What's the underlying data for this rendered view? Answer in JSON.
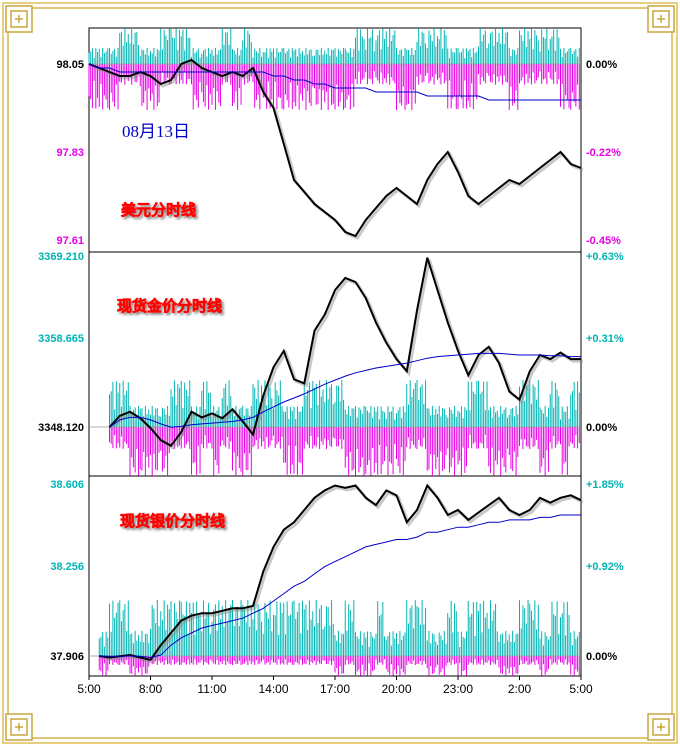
{
  "date_label": "08月13日",
  "colors": {
    "price_line": "#000000",
    "avg_line": "#0000c8",
    "up_bar": "#00b4b4",
    "down_bar": "#e600e6",
    "left_base": "#000000",
    "left_mid": "#e600e6",
    "left_gold": "#00b4b4",
    "right_neg": "#e600e6",
    "right_pos": "#00b4b4",
    "title_text": "#ffd200",
    "title_shadow": "#ff0000",
    "date_text": "#0000c8",
    "frame_gold": "#d8b44a"
  },
  "chart_data": [
    {
      "type": "line",
      "title": "美元分时线",
      "left_ticks": [
        "98.05",
        "97.83",
        "97.61"
      ],
      "right_ticks": [
        "0.00%",
        "-0.22%",
        "-0.45%"
      ],
      "base_value": 98.05,
      "ylim": [
        97.61,
        98.05
      ],
      "x_hours": [
        0,
        0.5,
        1,
        1.5,
        2,
        2.5,
        3,
        3.5,
        4,
        4.5,
        5,
        5.5,
        6,
        6.5,
        7,
        7.5,
        8,
        8.5,
        9,
        9.5,
        10,
        10.5,
        11,
        11.5,
        12,
        12.5,
        13,
        13.5,
        14,
        14.5,
        15,
        15.5,
        16,
        16.5,
        17,
        17.5,
        18,
        18.5,
        19,
        19.5,
        20,
        20.5,
        21,
        21.5,
        22,
        22.5,
        23,
        23.5,
        24
      ],
      "price": [
        98.05,
        98.04,
        98.03,
        98.02,
        98.02,
        98.03,
        98.02,
        98.0,
        98.01,
        98.05,
        98.06,
        98.04,
        98.03,
        98.02,
        98.03,
        98.02,
        98.04,
        97.98,
        97.94,
        97.85,
        97.76,
        97.73,
        97.7,
        97.68,
        97.66,
        97.63,
        97.62,
        97.66,
        97.69,
        97.72,
        97.74,
        97.72,
        97.7,
        97.76,
        97.8,
        97.83,
        97.78,
        97.72,
        97.7,
        97.72,
        97.74,
        97.76,
        97.75,
        97.77,
        97.79,
        97.81,
        97.83,
        97.8,
        97.79
      ],
      "avg": [
        98.05,
        98.04,
        98.04,
        98.03,
        98.03,
        98.03,
        98.03,
        98.03,
        98.03,
        98.03,
        98.03,
        98.03,
        98.03,
        98.03,
        98.03,
        98.03,
        98.03,
        98.03,
        98.02,
        98.02,
        98.01,
        98.01,
        98.0,
        98.0,
        97.99,
        97.99,
        97.99,
        97.99,
        97.98,
        97.98,
        97.98,
        97.98,
        97.98,
        97.97,
        97.97,
        97.97,
        97.97,
        97.97,
        97.97,
        97.96,
        97.96,
        97.96,
        97.96,
        97.96,
        97.96,
        97.96,
        97.96,
        97.96,
        97.96
      ]
    },
    {
      "type": "line",
      "title": "现货金价分时线",
      "left_ticks": [
        "3369.210",
        "3358.665",
        "3348.120"
      ],
      "right_ticks": [
        "+0.63%",
        "+0.31%",
        "0.00%"
      ],
      "base_value": 3348.12,
      "ylim": [
        3348.12,
        3369.21
      ],
      "x_hours": [
        0,
        0.5,
        1,
        1.5,
        2,
        2.5,
        3,
        3.5,
        4,
        4.5,
        5,
        5.5,
        6,
        6.5,
        7,
        7.5,
        8,
        8.5,
        9,
        9.5,
        10,
        10.5,
        11,
        11.5,
        12,
        12.5,
        13,
        13.5,
        14,
        14.5,
        15,
        15.5,
        16,
        16.5,
        17,
        17.5,
        18,
        18.5,
        19,
        19.5,
        20,
        20.5,
        21,
        21.5,
        22,
        22.5,
        23,
        23.5,
        24
      ],
      "price": [
        null,
        null,
        3348.1,
        3349.5,
        3350.0,
        3349.2,
        3348.0,
        3346.5,
        3345.8,
        3347.5,
        3350.0,
        3349.3,
        3349.8,
        3349.2,
        3350.3,
        3348.8,
        3347.2,
        3352.0,
        3355.5,
        3357.5,
        3354.0,
        3353.5,
        3360.0,
        3362.0,
        3365.0,
        3366.5,
        3366.0,
        3364.0,
        3361.0,
        3358.5,
        3356.5,
        3355.0,
        3362.5,
        3369.0,
        3365.0,
        3361.0,
        3357.5,
        3354.5,
        3357.0,
        3358.0,
        3356.0,
        3352.5,
        3351.5,
        3355.0,
        3357.0,
        3356.5,
        3357.3,
        3356.5,
        3356.5
      ],
      "avg": [
        null,
        null,
        3348.1,
        3349.0,
        3349.3,
        3349.3,
        3349.0,
        3348.5,
        3348.1,
        3348.2,
        3348.4,
        3348.5,
        3348.6,
        3348.7,
        3348.8,
        3349.0,
        3349.3,
        3350.0,
        3350.6,
        3351.2,
        3351.7,
        3352.2,
        3352.8,
        3353.4,
        3353.9,
        3354.4,
        3354.8,
        3355.1,
        3355.4,
        3355.6,
        3355.8,
        3356.0,
        3356.3,
        3356.6,
        3356.8,
        3356.9,
        3357.0,
        3357.1,
        3357.2,
        3357.2,
        3357.2,
        3357.1,
        3357.0,
        3357.0,
        3357.0,
        3356.9,
        3356.9,
        3356.8,
        3356.8
      ]
    },
    {
      "type": "line",
      "title": "现货银价分时线",
      "left_ticks": [
        "38.606",
        "38.256",
        "37.906"
      ],
      "right_ticks": [
        "+1.85%",
        "+0.92%",
        "0.00%"
      ],
      "base_value": 37.906,
      "ylim": [
        37.906,
        38.606
      ],
      "x_ticks": [
        "5:00",
        "8:00",
        "11:00",
        "14:00",
        "17:00",
        "20:00",
        "23:00",
        "2:00",
        "5:00"
      ],
      "x_hours": [
        0,
        0.5,
        1,
        1.5,
        2,
        2.5,
        3,
        3.5,
        4,
        4.5,
        5,
        5.5,
        6,
        6.5,
        7,
        7.5,
        8,
        8.5,
        9,
        9.5,
        10,
        10.5,
        11,
        11.5,
        12,
        12.5,
        13,
        13.5,
        14,
        14.5,
        15,
        15.5,
        16,
        16.5,
        17,
        17.5,
        18,
        18.5,
        19,
        19.5,
        20,
        20.5,
        21,
        21.5,
        22,
        22.5,
        23,
        23.5,
        24
      ],
      "price": [
        null,
        37.906,
        37.9,
        37.905,
        37.91,
        37.9,
        37.89,
        37.95,
        38.0,
        38.05,
        38.07,
        38.08,
        38.08,
        38.09,
        38.1,
        38.1,
        38.11,
        38.25,
        38.35,
        38.42,
        38.45,
        38.5,
        38.55,
        38.58,
        38.6,
        38.59,
        38.6,
        38.55,
        38.52,
        38.58,
        38.56,
        38.45,
        38.5,
        38.6,
        38.55,
        38.48,
        38.5,
        38.46,
        38.49,
        38.52,
        38.55,
        38.5,
        38.48,
        38.5,
        38.55,
        38.53,
        38.55,
        38.56,
        38.54
      ],
      "avg": [
        null,
        37.906,
        37.905,
        37.905,
        37.906,
        37.905,
        37.9,
        37.91,
        37.95,
        37.98,
        38.0,
        38.02,
        38.03,
        38.04,
        38.05,
        38.06,
        38.08,
        38.1,
        38.13,
        38.16,
        38.19,
        38.21,
        38.24,
        38.27,
        38.29,
        38.31,
        38.33,
        38.35,
        38.36,
        38.37,
        38.38,
        38.38,
        38.39,
        38.41,
        38.41,
        38.42,
        38.43,
        38.43,
        38.44,
        38.45,
        38.45,
        38.46,
        38.46,
        38.46,
        38.47,
        38.47,
        38.48,
        38.48,
        38.48
      ]
    }
  ]
}
